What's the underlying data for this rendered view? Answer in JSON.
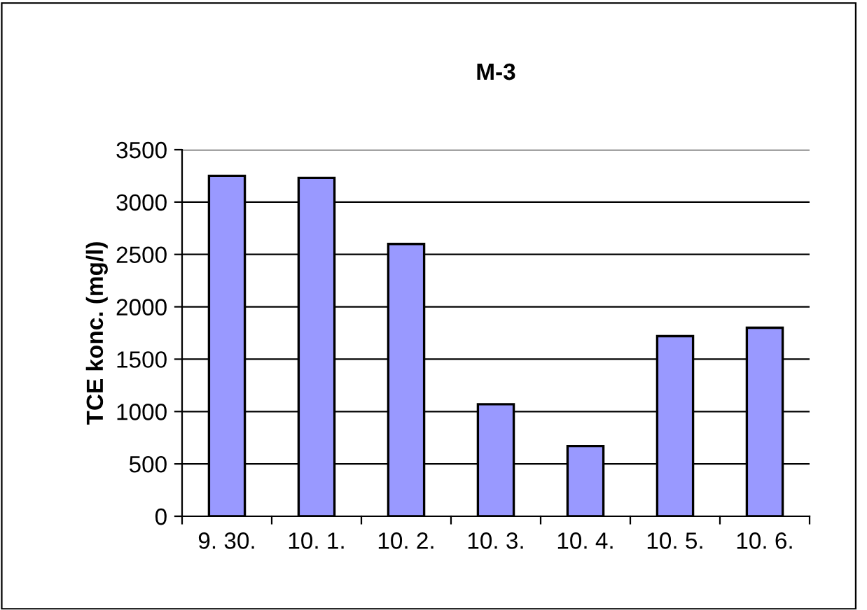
{
  "chart_data": {
    "type": "bar",
    "title": "M-3",
    "ylabel": "TCE konc. (mg/l)",
    "categories": [
      "9. 30.",
      "10. 1.",
      "10. 2.",
      "10. 3.",
      "10. 4.",
      "10. 5.",
      "10. 6."
    ],
    "values": [
      3250,
      3230,
      2600,
      1070,
      670,
      1720,
      1800
    ],
    "color": "#9999ff",
    "ylim": [
      0,
      3500
    ],
    "yticks": [
      0,
      500,
      1000,
      1500,
      2000,
      2500,
      3000,
      3500
    ],
    "grid": "y",
    "legend": false
  }
}
